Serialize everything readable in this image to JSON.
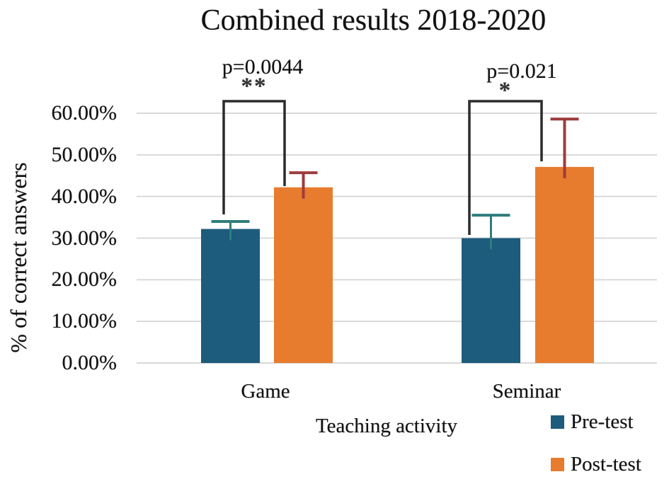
{
  "figure": {
    "title": "Combined results 2018-2020"
  },
  "chart_data": {
    "type": "bar",
    "title": "Combined results 2018-2020",
    "xlabel": "Teaching activity",
    "ylabel": "% of correct answers",
    "categories": [
      "Game",
      "Seminar"
    ],
    "series": [
      {
        "name": "Pre-test",
        "color": "#1d5c7d",
        "error_color": "#2e7d7c",
        "values": [
          32.2,
          30.0
        ],
        "error_up": [
          1.8,
          5.5
        ]
      },
      {
        "name": "Post-test",
        "color": "#e87c2e",
        "error_color": "#9e3b3c",
        "values": [
          42.2,
          47.1
        ],
        "error_up": [
          3.5,
          11.5
        ]
      }
    ],
    "ylim": [
      0,
      60
    ],
    "ytick_values": [
      0,
      10,
      20,
      30,
      40,
      50,
      60
    ],
    "ytick_labels": [
      "0.00%",
      "10.00%",
      "20.00%",
      "30.00%",
      "40.00%",
      "50.00%",
      "60.00%"
    ],
    "grid": true,
    "legend_position": "bottom-right",
    "annotations": [
      {
        "group": "Game",
        "p_label": "p=0.0044",
        "stars": "**"
      },
      {
        "group": "Seminar",
        "p_label": "p=0.021",
        "stars": "*"
      }
    ],
    "colors": {
      "gridline": "#d9d9d9",
      "bracket": "#2b2b2b",
      "text": "#111111",
      "background": "#ffffff"
    }
  }
}
